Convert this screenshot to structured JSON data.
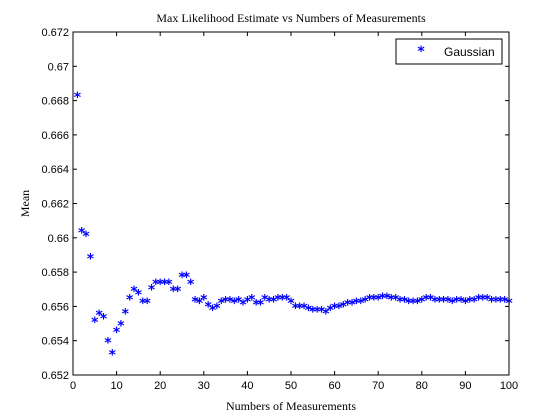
{
  "chart_data": {
    "type": "scatter",
    "title": "Max Likelihood Estimate vs Numbers of Measurements",
    "xlabel": "Numbers of Measurements",
    "ylabel": "Mean",
    "xlim": [
      0,
      100
    ],
    "ylim": [
      0.652,
      0.672
    ],
    "xticks": [
      "0",
      "10",
      "20",
      "30",
      "40",
      "50",
      "60",
      "70",
      "80",
      "90",
      "100"
    ],
    "yticks": [
      "0.652",
      "0.654",
      "0.656",
      "0.658",
      "0.66",
      "0.662",
      "0.664",
      "0.666",
      "0.668",
      "0.67",
      "0.672"
    ],
    "grid": false,
    "legend": {
      "position": "top-right",
      "entries": [
        "Gaussian"
      ]
    },
    "series": [
      {
        "name": "Gaussian",
        "marker": "*",
        "color": "#0000ff",
        "x": [
          1,
          2,
          3,
          4,
          5,
          6,
          7,
          8,
          9,
          10,
          11,
          12,
          13,
          14,
          15,
          16,
          17,
          18,
          19,
          20,
          21,
          22,
          23,
          24,
          25,
          26,
          27,
          28,
          29,
          30,
          31,
          32,
          33,
          34,
          35,
          36,
          37,
          38,
          39,
          40,
          41,
          42,
          43,
          44,
          45,
          46,
          47,
          48,
          49,
          50,
          51,
          52,
          53,
          54,
          55,
          56,
          57,
          58,
          59,
          60,
          61,
          62,
          63,
          64,
          65,
          66,
          67,
          68,
          69,
          70,
          71,
          72,
          73,
          74,
          75,
          76,
          77,
          78,
          79,
          80,
          81,
          82,
          83,
          84,
          85,
          86,
          87,
          88,
          89,
          90,
          91,
          92,
          93,
          94,
          95,
          96,
          97,
          98,
          99,
          100
        ],
        "y": [
          0.6682,
          0.6603,
          0.6601,
          0.6588,
          0.6551,
          0.6555,
          0.6553,
          0.6539,
          0.6532,
          0.6545,
          0.6549,
          0.6556,
          0.6564,
          0.6569,
          0.6567,
          0.6562,
          0.6562,
          0.657,
          0.6573,
          0.6573,
          0.6573,
          0.6573,
          0.6569,
          0.6569,
          0.6577,
          0.6577,
          0.6573,
          0.6563,
          0.6562,
          0.6564,
          0.656,
          0.6558,
          0.6559,
          0.6562,
          0.6563,
          0.6563,
          0.6562,
          0.6563,
          0.6561,
          0.6563,
          0.6564,
          0.6561,
          0.6561,
          0.6564,
          0.6563,
          0.6563,
          0.6564,
          0.6564,
          0.6564,
          0.6562,
          0.6559,
          0.6559,
          0.6559,
          0.6558,
          0.6557,
          0.6557,
          0.6557,
          0.6556,
          0.6558,
          0.6559,
          0.6559,
          0.656,
          0.6561,
          0.6561,
          0.6562,
          0.6562,
          0.6563,
          0.6564,
          0.6564,
          0.6564,
          0.6565,
          0.6565,
          0.6564,
          0.6564,
          0.6563,
          0.6563,
          0.6562,
          0.6562,
          0.6562,
          0.6563,
          0.6564,
          0.6564,
          0.6563,
          0.6563,
          0.6563,
          0.6563,
          0.6562,
          0.6563,
          0.6563,
          0.6562,
          0.6563,
          0.6563,
          0.6564,
          0.6564,
          0.6564,
          0.6563,
          0.6563,
          0.6563,
          0.6563,
          0.6562
        ]
      }
    ]
  }
}
